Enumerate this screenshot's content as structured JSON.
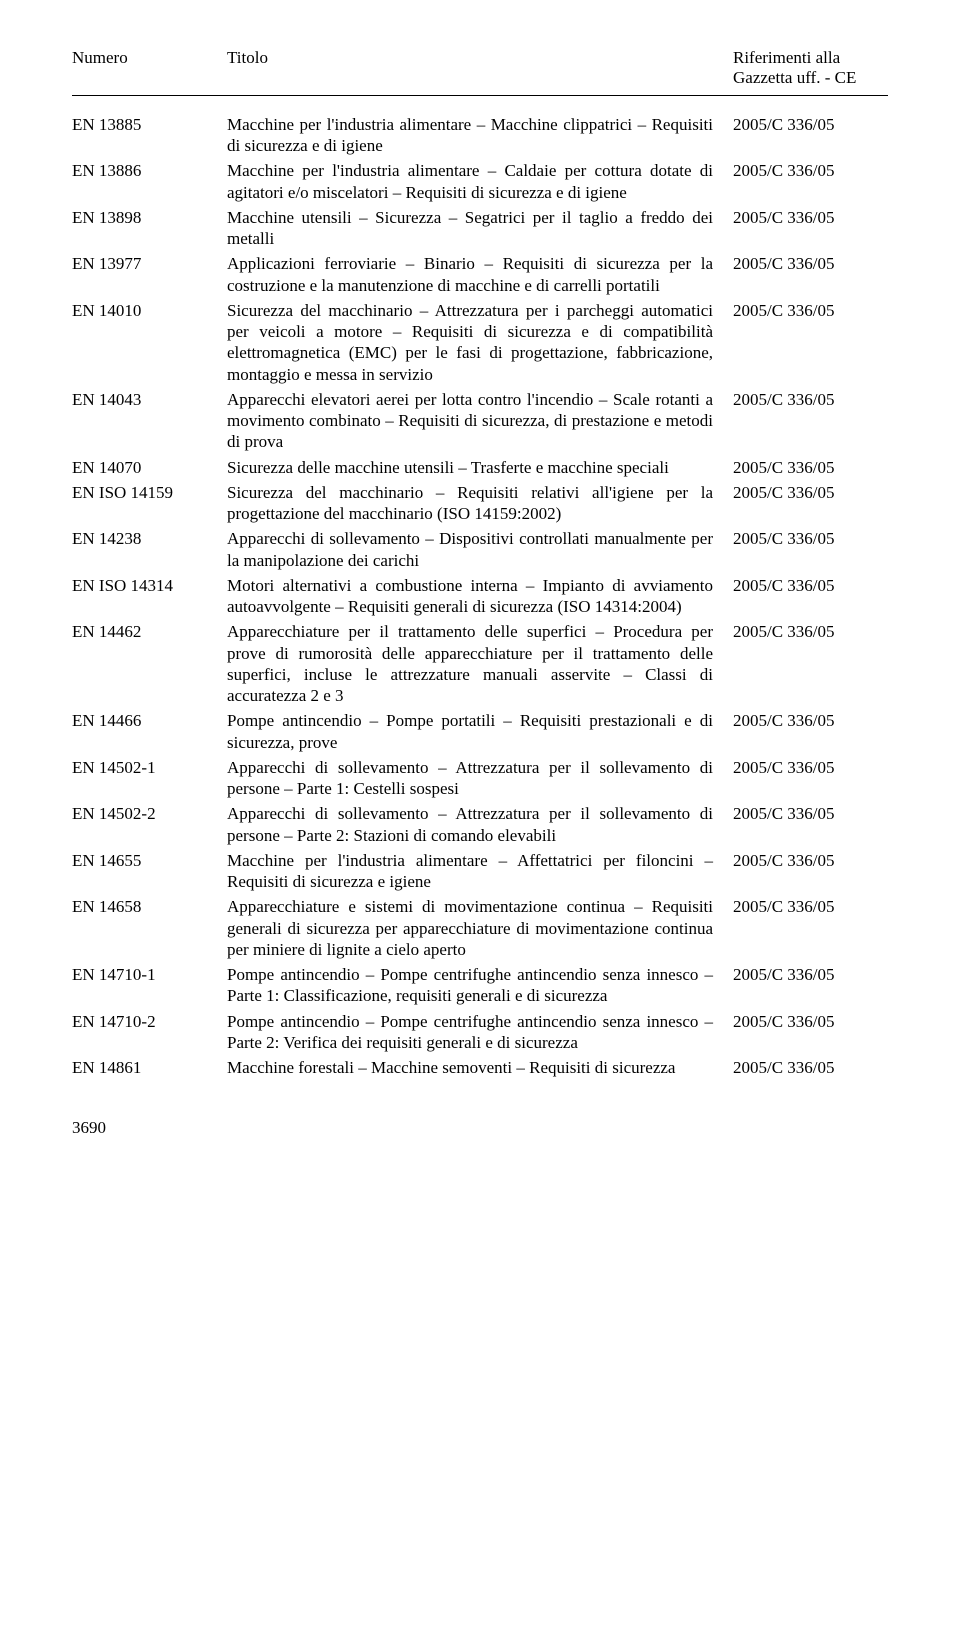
{
  "header": {
    "numero": "Numero",
    "titolo": "Titolo",
    "riferimenti_line1": "Riferimenti alla",
    "riferimenti_line2": "Gazzetta uff. - CE"
  },
  "rows": [
    {
      "num": "EN 13885",
      "title": "Macchine per l'industria alimentare – Macchine clippatrici – Requisiti di sicurezza e di igiene",
      "ref": "2005/C 336/05"
    },
    {
      "num": "EN 13886",
      "title": "Macchine per l'industria alimentare – Caldaie per cottura dotate di agitatori e/o miscelatori – Requisiti di sicurezza e di igiene",
      "ref": "2005/C 336/05"
    },
    {
      "num": "EN 13898",
      "title": "Macchine utensili – Sicurezza – Segatrici per il taglio a freddo dei metalli",
      "ref": "2005/C 336/05"
    },
    {
      "num": "EN 13977",
      "title": "Applicazioni ferroviarie – Binario – Requisiti di sicurezza per la costruzione e la manutenzione di macchine e di carrelli portatili",
      "ref": "2005/C 336/05"
    },
    {
      "num": "EN 14010",
      "title": "Sicurezza del macchinario – Attrezzatura per i parcheggi automatici per veicoli a motore – Requisiti di sicurezza e di compatibilità elettromagnetica (EMC) per le fasi di progettazione, fabbricazione, montaggio e messa in servizio",
      "ref": "2005/C 336/05"
    },
    {
      "num": "EN 14043",
      "title": "Apparecchi elevatori aerei per lotta contro l'incendio – Scale rotanti a movimento combinato – Requisiti di sicurezza, di prestazione e metodi di prova",
      "ref": "2005/C 336/05"
    },
    {
      "num": "EN 14070",
      "title": "Sicurezza delle macchine utensili – Trasferte e macchine speciali",
      "ref": "2005/C 336/05"
    },
    {
      "num": "EN ISO 14159",
      "title": "Sicurezza del macchinario – Requisiti relativi all'igiene per la progettazione del macchinario (ISO 14159:2002)",
      "ref": "2005/C 336/05"
    },
    {
      "num": "EN 14238",
      "title": "Apparecchi di sollevamento – Dispositivi controllati manualmente per la manipolazione dei carichi",
      "ref": "2005/C 336/05"
    },
    {
      "num": "EN ISO 14314",
      "title": "Motori alternativi a combustione interna – Impianto di avviamento autoavvolgente – Requisiti generali di sicurezza (ISO 14314:2004)",
      "ref": "2005/C 336/05"
    },
    {
      "num": "EN 14462",
      "title": "Apparecchiature per il trattamento delle superfici – Procedura per prove di rumorosità delle apparecchiature per il trattamento delle superfici, incluse le attrezzature manuali asservite – Classi di accuratezza 2 e 3",
      "ref": "2005/C 336/05"
    },
    {
      "num": "EN 14466",
      "title": "Pompe antincendio – Pompe portatili – Requisiti prestazionali e di sicurezza, prove",
      "ref": "2005/C 336/05"
    },
    {
      "num": "EN 14502-1",
      "title": "Apparecchi di sollevamento – Attrezzatura per il sollevamento di persone – Parte 1: Cestelli sospesi",
      "ref": "2005/C 336/05"
    },
    {
      "num": "EN 14502-2",
      "title": "Apparecchi di sollevamento – Attrezzatura per il sollevamento di persone – Parte 2: Stazioni di comando elevabili",
      "ref": "2005/C 336/05"
    },
    {
      "num": "EN 14655",
      "title": "Macchine per l'industria alimentare – Affettatrici per filoncini – Requisiti di sicurezza e igiene",
      "ref": "2005/C 336/05"
    },
    {
      "num": "EN 14658",
      "title": "Apparecchiature e sistemi di movimentazione continua – Requisiti generali di sicurezza per apparecchiature di movimentazione continua per miniere di lignite a cielo aperto",
      "ref": "2005/C 336/05"
    },
    {
      "num": "EN 14710-1",
      "title": "Pompe antincendio – Pompe centrifughe antincendio senza innesco – Parte 1: Classificazione, requisiti generali e di sicurezza",
      "ref": "2005/C 336/05"
    },
    {
      "num": "EN 14710-2",
      "title": "Pompe antincendio – Pompe centrifughe antincendio senza innesco – Parte 2: Verifica dei requisiti generali e di sicurezza",
      "ref": "2005/C 336/05"
    },
    {
      "num": "EN 14861",
      "title": "Macchine forestali – Macchine semoventi – Requisiti di sicurezza",
      "ref": "2005/C 336/05"
    }
  ],
  "footer": {
    "page_number": "3690"
  }
}
